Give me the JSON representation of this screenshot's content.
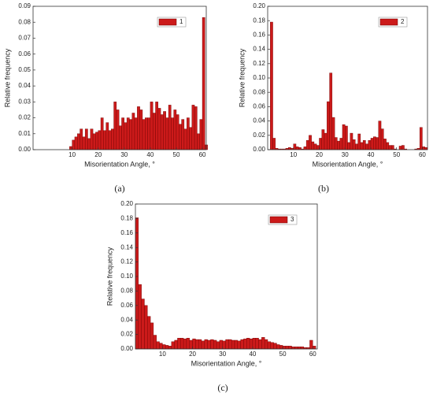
{
  "chart_data": [
    {
      "type": "histogram",
      "caption": "(a)",
      "xlabel": "Misorientation Angle, °",
      "ylabel": "Relative frequency",
      "legend": "upper right",
      "bins": [
        9,
        10,
        11,
        12,
        13,
        14,
        15,
        16,
        17,
        18,
        19,
        20,
        21,
        22,
        23,
        24,
        25,
        26,
        27,
        28,
        29,
        30,
        31,
        32,
        33,
        34,
        35,
        36,
        37,
        38,
        39,
        40,
        41,
        42,
        43,
        44,
        45,
        46,
        47,
        48,
        49,
        50,
        51,
        52,
        53,
        54,
        55,
        56,
        57,
        58,
        59,
        60,
        61,
        62
      ],
      "series": [
        {
          "name": "1",
          "color": "#cc1a1a",
          "values": [
            0.002,
            0.006,
            0.008,
            0.01,
            0.013,
            0.008,
            0.013,
            0.007,
            0.013,
            0.01,
            0.011,
            0.012,
            0.02,
            0.012,
            0.017,
            0.012,
            0.013,
            0.03,
            0.025,
            0.015,
            0.02,
            0.017,
            0.02,
            0.019,
            0.023,
            0.02,
            0.027,
            0.025,
            0.019,
            0.02,
            0.02,
            0.03,
            0.023,
            0.03,
            0.026,
            0.022,
            0.024,
            0.02,
            0.028,
            0.02,
            0.025,
            0.022,
            0.016,
            0.019,
            0.013,
            0.02,
            0.014,
            0.028,
            0.027,
            0.01,
            0.019,
            0.083,
            0.003
          ]
        }
      ],
      "xlim": [
        -5,
        61.5
      ],
      "xticks": [
        10,
        20,
        30,
        40,
        50,
        60
      ],
      "ylim": [
        0,
        0.09
      ],
      "yticks": [
        {
          "value": 0,
          "label": "0.00"
        },
        {
          "value": 0.01,
          "label": "0.01"
        },
        {
          "value": 0.02,
          "label": "0.02"
        },
        {
          "value": 0.03,
          "label": "0.03"
        },
        {
          "value": 0.04,
          "label": "0.04"
        },
        {
          "value": 0.05,
          "label": "0.05"
        },
        {
          "value": 0.06,
          "label": "0.06"
        },
        {
          "value": 0.07,
          "label": "0.07"
        },
        {
          "value": 0.08,
          "label": "0.08"
        },
        {
          "value": 0.09,
          "label": "0.09"
        }
      ]
    },
    {
      "type": "histogram",
      "caption": "(b)",
      "xlabel": "Misorientation Angle, °",
      "ylabel": "Relative frequency",
      "legend": "upper right",
      "bins": [
        1,
        2,
        3,
        4,
        5,
        6,
        7,
        8,
        9,
        10,
        11,
        12,
        13,
        14,
        15,
        16,
        17,
        18,
        19,
        20,
        21,
        22,
        23,
        24,
        25,
        26,
        27,
        28,
        29,
        30,
        31,
        32,
        33,
        34,
        35,
        36,
        37,
        38,
        39,
        40,
        41,
        42,
        43,
        44,
        45,
        46,
        47,
        48,
        49,
        50,
        51,
        52,
        53,
        54,
        55,
        56,
        57,
        58,
        59,
        60,
        61,
        62
      ],
      "series": [
        {
          "name": "2",
          "color": "#cc1a1a",
          "values": [
            0.178,
            0.016,
            0.002,
            0.001,
            0.001,
            0.001,
            0.002,
            0.003,
            0.002,
            0.008,
            0.004,
            0.003,
            0.001,
            0.004,
            0.013,
            0.02,
            0.011,
            0.008,
            0.006,
            0.016,
            0.028,
            0.023,
            0.067,
            0.107,
            0.045,
            0.017,
            0.012,
            0.016,
            0.035,
            0.033,
            0.01,
            0.023,
            0.014,
            0.008,
            0.022,
            0.01,
            0.013,
            0.008,
            0.013,
            0.016,
            0.018,
            0.017,
            0.04,
            0.029,
            0.015,
            0.01,
            0.006,
            0.006,
            0.001,
            0,
            0.005,
            0.006,
            0.001,
            0,
            0,
            0,
            0.001,
            0.002,
            0.031,
            0.004,
            0.003
          ]
        }
      ],
      "xlim": [
        0,
        62
      ],
      "xticks": [
        10,
        20,
        30,
        40,
        50,
        60
      ],
      "ylim": [
        0,
        0.2
      ],
      "yticks": [
        {
          "value": 0,
          "label": "0.00"
        },
        {
          "value": 0.02,
          "label": "0.02"
        },
        {
          "value": 0.04,
          "label": "0.04"
        },
        {
          "value": 0.06,
          "label": "0.06"
        },
        {
          "value": 0.08,
          "label": "0.08"
        },
        {
          "value": 0.1,
          "label": "0.10"
        },
        {
          "value": 0.12,
          "label": "0.12"
        },
        {
          "value": 0.14,
          "label": "0.14"
        },
        {
          "value": 0.16,
          "label": "0.16"
        },
        {
          "value": 0.18,
          "label": "0.18"
        },
        {
          "value": 0.2,
          "label": "0.20"
        }
      ]
    },
    {
      "type": "histogram",
      "caption": "(c)",
      "xlabel": "Misorientation Angle, °",
      "ylabel": "Relative frequency",
      "legend": "upper right",
      "bins": [
        1,
        2,
        3,
        4,
        5,
        6,
        7,
        8,
        9,
        10,
        11,
        12,
        13,
        14,
        15,
        16,
        17,
        18,
        19,
        20,
        21,
        22,
        23,
        24,
        25,
        26,
        27,
        28,
        29,
        30,
        31,
        32,
        33,
        34,
        35,
        36,
        37,
        38,
        39,
        40,
        41,
        42,
        43,
        44,
        45,
        46,
        47,
        48,
        49,
        50,
        51,
        52,
        53,
        54,
        55,
        56,
        57,
        58,
        59,
        60,
        61
      ],
      "series": [
        {
          "name": "3",
          "color": "#cc1a1a",
          "values": [
            0.181,
            0.089,
            0.069,
            0.06,
            0.045,
            0.036,
            0.019,
            0.01,
            0.008,
            0.006,
            0.005,
            0.004,
            0.01,
            0.012,
            0.015,
            0.015,
            0.014,
            0.015,
            0.012,
            0.014,
            0.013,
            0.013,
            0.011,
            0.013,
            0.012,
            0.013,
            0.012,
            0.01,
            0.012,
            0.011,
            0.013,
            0.013,
            0.012,
            0.012,
            0.011,
            0.013,
            0.014,
            0.015,
            0.014,
            0.015,
            0.015,
            0.013,
            0.016,
            0.013,
            0.01,
            0.009,
            0.008,
            0.006,
            0.005,
            0.004,
            0.004,
            0.004,
            0.003,
            0.003,
            0.003,
            0.003,
            0.002,
            0.002,
            0.012,
            0.004
          ]
        }
      ],
      "xlim": [
        1,
        61.5
      ],
      "xticks": [
        10,
        20,
        30,
        40,
        50,
        60
      ],
      "ylim": [
        0,
        0.2
      ],
      "yticks": [
        {
          "value": 0,
          "label": "0.00"
        },
        {
          "value": 0.02,
          "label": "0.02"
        },
        {
          "value": 0.04,
          "label": "0.04"
        },
        {
          "value": 0.06,
          "label": "0.06"
        },
        {
          "value": 0.08,
          "label": "0.08"
        },
        {
          "value": 0.1,
          "label": "0.10"
        },
        {
          "value": 0.12,
          "label": "0.12"
        },
        {
          "value": 0.14,
          "label": "0.14"
        },
        {
          "value": 0.16,
          "label": "0.16"
        },
        {
          "value": 0.18,
          "label": "0.18"
        },
        {
          "value": 0.2,
          "label": "0.20"
        }
      ]
    }
  ]
}
